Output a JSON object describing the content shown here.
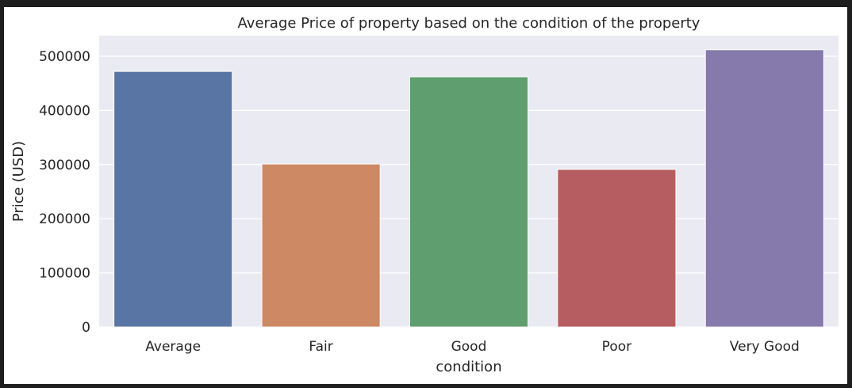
{
  "chart_data": {
    "type": "bar",
    "title": "Average Price of property based on the condition of the property",
    "xlabel": "condition",
    "ylabel": "Price (USD)",
    "categories": [
      "Average",
      "Fair",
      "Good",
      "Poor",
      "Very Good"
    ],
    "values": [
      472000,
      301000,
      462000,
      291000,
      512000
    ],
    "colors": [
      "#5975a4",
      "#cc8963",
      "#5f9e6e",
      "#b55d60",
      "#857aab"
    ],
    "ylim": [
      0,
      538000
    ],
    "yticks": [
      0,
      100000,
      200000,
      300000,
      400000,
      500000
    ],
    "ytick_labels": [
      "0",
      "100000",
      "200000",
      "300000",
      "400000",
      "500000"
    ],
    "grid": true,
    "plot_background": "#eaeaf2"
  }
}
